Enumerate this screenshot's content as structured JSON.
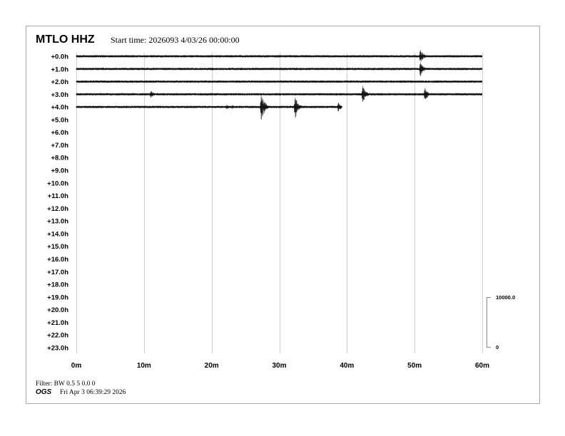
{
  "header": {
    "station": "MTLO HHZ",
    "start_time": "Start time: 2026093  4/03/26 00:00:00"
  },
  "footer": {
    "filter": "Filter: BW 0.5 5 0.0 0",
    "agency": "OGS",
    "timestamp": "Fri Apr  3 06:39:29 2026"
  },
  "chart_data": {
    "type": "line",
    "title": "MTLO HHZ",
    "row_labels": [
      "+0.0h",
      "+1.0h",
      "+2.0h",
      "+3.0h",
      "+4.0h",
      "+5.0h",
      "+6.0h",
      "+7.0h",
      "+8.0h",
      "+9.0h",
      "+10.0h",
      "+11.0h",
      "+12.0h",
      "+13.0h",
      "+14.0h",
      "+15.0h",
      "+16.0h",
      "+17.0h",
      "+18.0h",
      "+19.0h",
      "+20.0h",
      "+21.0h",
      "+22.0h",
      "+23.0h"
    ],
    "x_ticks": [
      "0m",
      "10m",
      "20m",
      "30m",
      "40m",
      "50m",
      "60m"
    ],
    "xlim": [
      0,
      60
    ],
    "grid": "vertical every 10m",
    "scale_bar": {
      "top_label": "10000.0",
      "bottom_label": "0",
      "counts": 10000
    },
    "trace_color": "#000000",
    "grid_color": "#d0d0d0",
    "rows_with_data": [
      {
        "hour": 0,
        "end_minute": 60,
        "events": [
          {
            "minute": 50.8,
            "amplitude": 1600
          }
        ]
      },
      {
        "hour": 1,
        "end_minute": 60,
        "events": [
          {
            "minute": 4.0,
            "amplitude": 400
          },
          {
            "minute": 6.8,
            "amplitude": 200
          },
          {
            "minute": 50.8,
            "amplitude": 1700
          }
        ]
      },
      {
        "hour": 2,
        "end_minute": 60,
        "events": []
      },
      {
        "hour": 3,
        "end_minute": 60,
        "events": [
          {
            "minute": 11.0,
            "amplitude": 900
          },
          {
            "minute": 42.3,
            "amplitude": 2000
          },
          {
            "minute": 51.5,
            "amplitude": 1500
          }
        ]
      },
      {
        "hour": 4,
        "end_minute": 39.3,
        "events": [
          {
            "minute": 22.2,
            "amplitude": 600
          },
          {
            "minute": 23.0,
            "amplitude": 500
          },
          {
            "minute": 27.3,
            "amplitude": 3500
          },
          {
            "minute": 32.3,
            "amplitude": 2800
          },
          {
            "minute": 38.7,
            "amplitude": 1000
          }
        ]
      }
    ]
  }
}
